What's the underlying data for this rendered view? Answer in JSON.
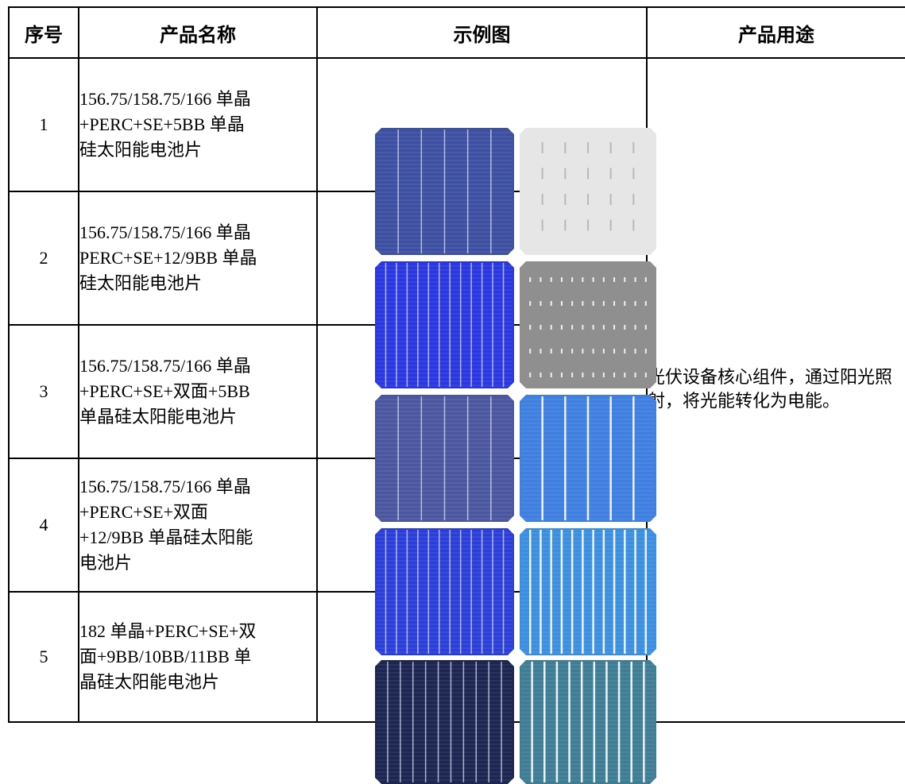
{
  "table": {
    "headers": {
      "index": "序号",
      "name": "产品名称",
      "example": "示例图",
      "usage": "产品用途"
    },
    "rows": [
      {
        "index": "1",
        "name": "156.75/158.75/166 单晶\n+PERC+SE+5BB 单晶\n硅太阳能电池片",
        "front_color": "#3d4fa0",
        "back_color": "#e6e6e6",
        "front_busbars": 5,
        "back_busbars": 5,
        "back_style": "dashed-light"
      },
      {
        "index": "2",
        "name": "156.75/158.75/166 单晶\nPERC+SE+12/9BB 单晶\n硅太阳能电池片",
        "front_color": "#2a37e0",
        "back_color": "#8f8f8f",
        "front_busbars": 12,
        "back_busbars": 12,
        "back_style": "dots"
      },
      {
        "index": "3",
        "name": "156.75/158.75/166 单晶\n+PERC+SE+双面+5BB\n单晶硅太阳能电池片",
        "front_color": "#4a579f",
        "back_color": "#3f7fe0",
        "front_busbars": 5,
        "back_busbars": 5,
        "back_style": "busbar"
      },
      {
        "index": "4",
        "name": "156.75/158.75/166 单晶\n+PERC+SE+双面\n+12/9BB 单晶硅太阳能\n电池片",
        "front_color": "#2b3fd8",
        "back_color": "#3c8fe0",
        "front_busbars": 12,
        "back_busbars": 12,
        "back_style": "busbar"
      },
      {
        "index": "5",
        "name": "182 单晶+PERC+SE+双\n面+9BB/10BB/11BB 单\n晶硅太阳能电池片",
        "front_color": "#1c2650",
        "back_color": "#3f7d95",
        "front_busbars": 10,
        "back_busbars": 10,
        "back_style": "busbar"
      }
    ],
    "usage_text": "光伏设备核心组件，通过阳光照射，将光能转化为电能。"
  }
}
